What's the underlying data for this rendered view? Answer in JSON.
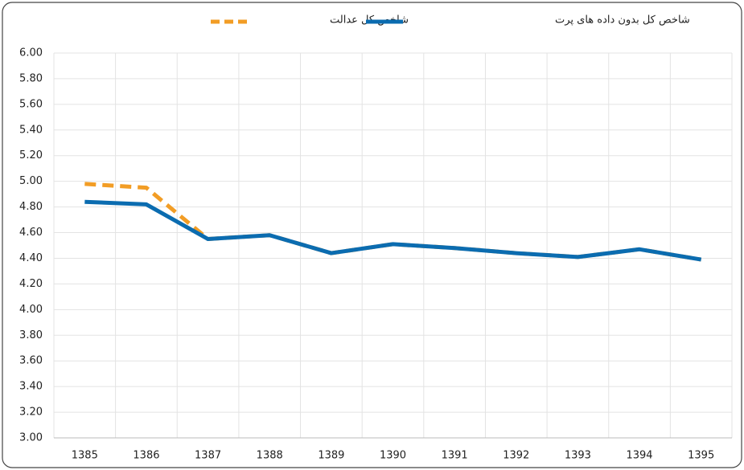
{
  "chart_data": {
    "type": "line",
    "categories": [
      "1385",
      "1386",
      "1387",
      "1388",
      "1389",
      "1390",
      "1391",
      "1392",
      "1393",
      "1394",
      "1395"
    ],
    "series": [
      {
        "name": "شاخص کل عدالت",
        "color": "#f29d25",
        "dashed": true,
        "values": [
          4.98,
          4.95,
          4.55,
          4.58,
          4.44,
          4.51,
          4.48,
          4.44,
          4.41,
          4.47,
          4.39
        ]
      },
      {
        "name": "شاخص کل بدون داده های پرت",
        "color": "#0b6cb0",
        "dashed": false,
        "values": [
          4.84,
          4.82,
          4.55,
          4.58,
          4.44,
          4.51,
          4.48,
          4.44,
          4.41,
          4.47,
          4.39
        ]
      }
    ],
    "ylim": [
      3.0,
      6.0
    ],
    "yticks": [
      {
        "value": 3.0,
        "label": "3.00"
      },
      {
        "value": 3.2,
        "label": "3.20"
      },
      {
        "value": 3.4,
        "label": "3.40"
      },
      {
        "value": 3.6,
        "label": "3.60"
      },
      {
        "value": 3.8,
        "label": "3.80"
      },
      {
        "value": 4.0,
        "label": "4.00"
      },
      {
        "value": 4.2,
        "label": "4.20"
      },
      {
        "value": 4.4,
        "label": "4.40"
      },
      {
        "value": 4.6,
        "label": "4.60"
      },
      {
        "value": 4.8,
        "label": "4.80"
      },
      {
        "value": 5.0,
        "label": "5.00"
      },
      {
        "value": 5.2,
        "label": "5.20"
      },
      {
        "value": 5.4,
        "label": "5.40"
      },
      {
        "value": 5.6,
        "label": "5.60"
      },
      {
        "value": 5.8,
        "label": "5.80"
      },
      {
        "value": 6.0,
        "label": "6.00"
      }
    ],
    "grid": true,
    "legend": "top"
  }
}
